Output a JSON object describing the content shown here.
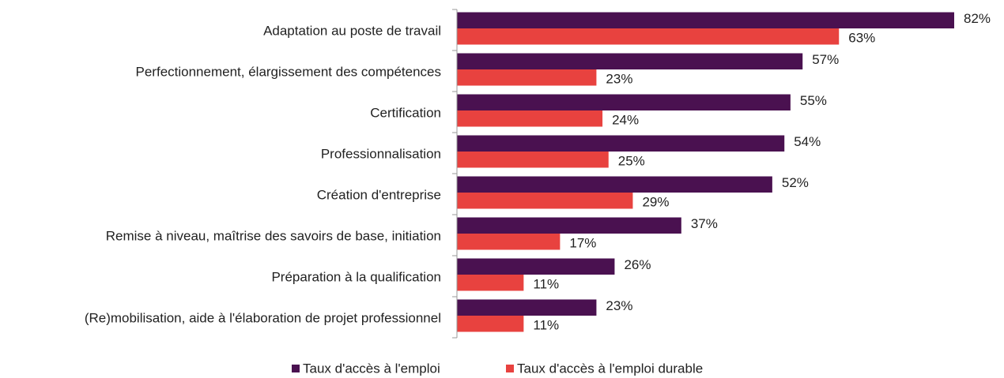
{
  "chart_data": {
    "type": "hbar",
    "categories": [
      "Adaptation au poste de travail",
      "Perfectionnement, élargissement des compétences",
      "Certification",
      "Professionnalisation",
      "Création d'entreprise",
      "Remise à niveau, maîtrise des savoirs de base, initiation",
      "Préparation à la qualification",
      "(Re)mobilisation, aide à l'élaboration de projet professionnel"
    ],
    "series": [
      {
        "name": "Taux d'accès à l'emploi",
        "color": "#4a1150",
        "values": [
          82,
          57,
          55,
          54,
          52,
          37,
          26,
          23
        ],
        "value_labels": [
          "82%",
          "57%",
          "55%",
          "54%",
          "52%",
          "37%",
          "26%",
          "23%"
        ]
      },
      {
        "name": "Taux d'accès à l'emploi durable",
        "color": "#e8423f",
        "values": [
          63,
          23,
          24,
          25,
          29,
          17,
          11,
          11
        ],
        "value_labels": [
          "63%",
          "23%",
          "24%",
          "25%",
          "29%",
          "17%",
          "11%",
          "11%"
        ]
      }
    ],
    "legend": "bottom"
  }
}
